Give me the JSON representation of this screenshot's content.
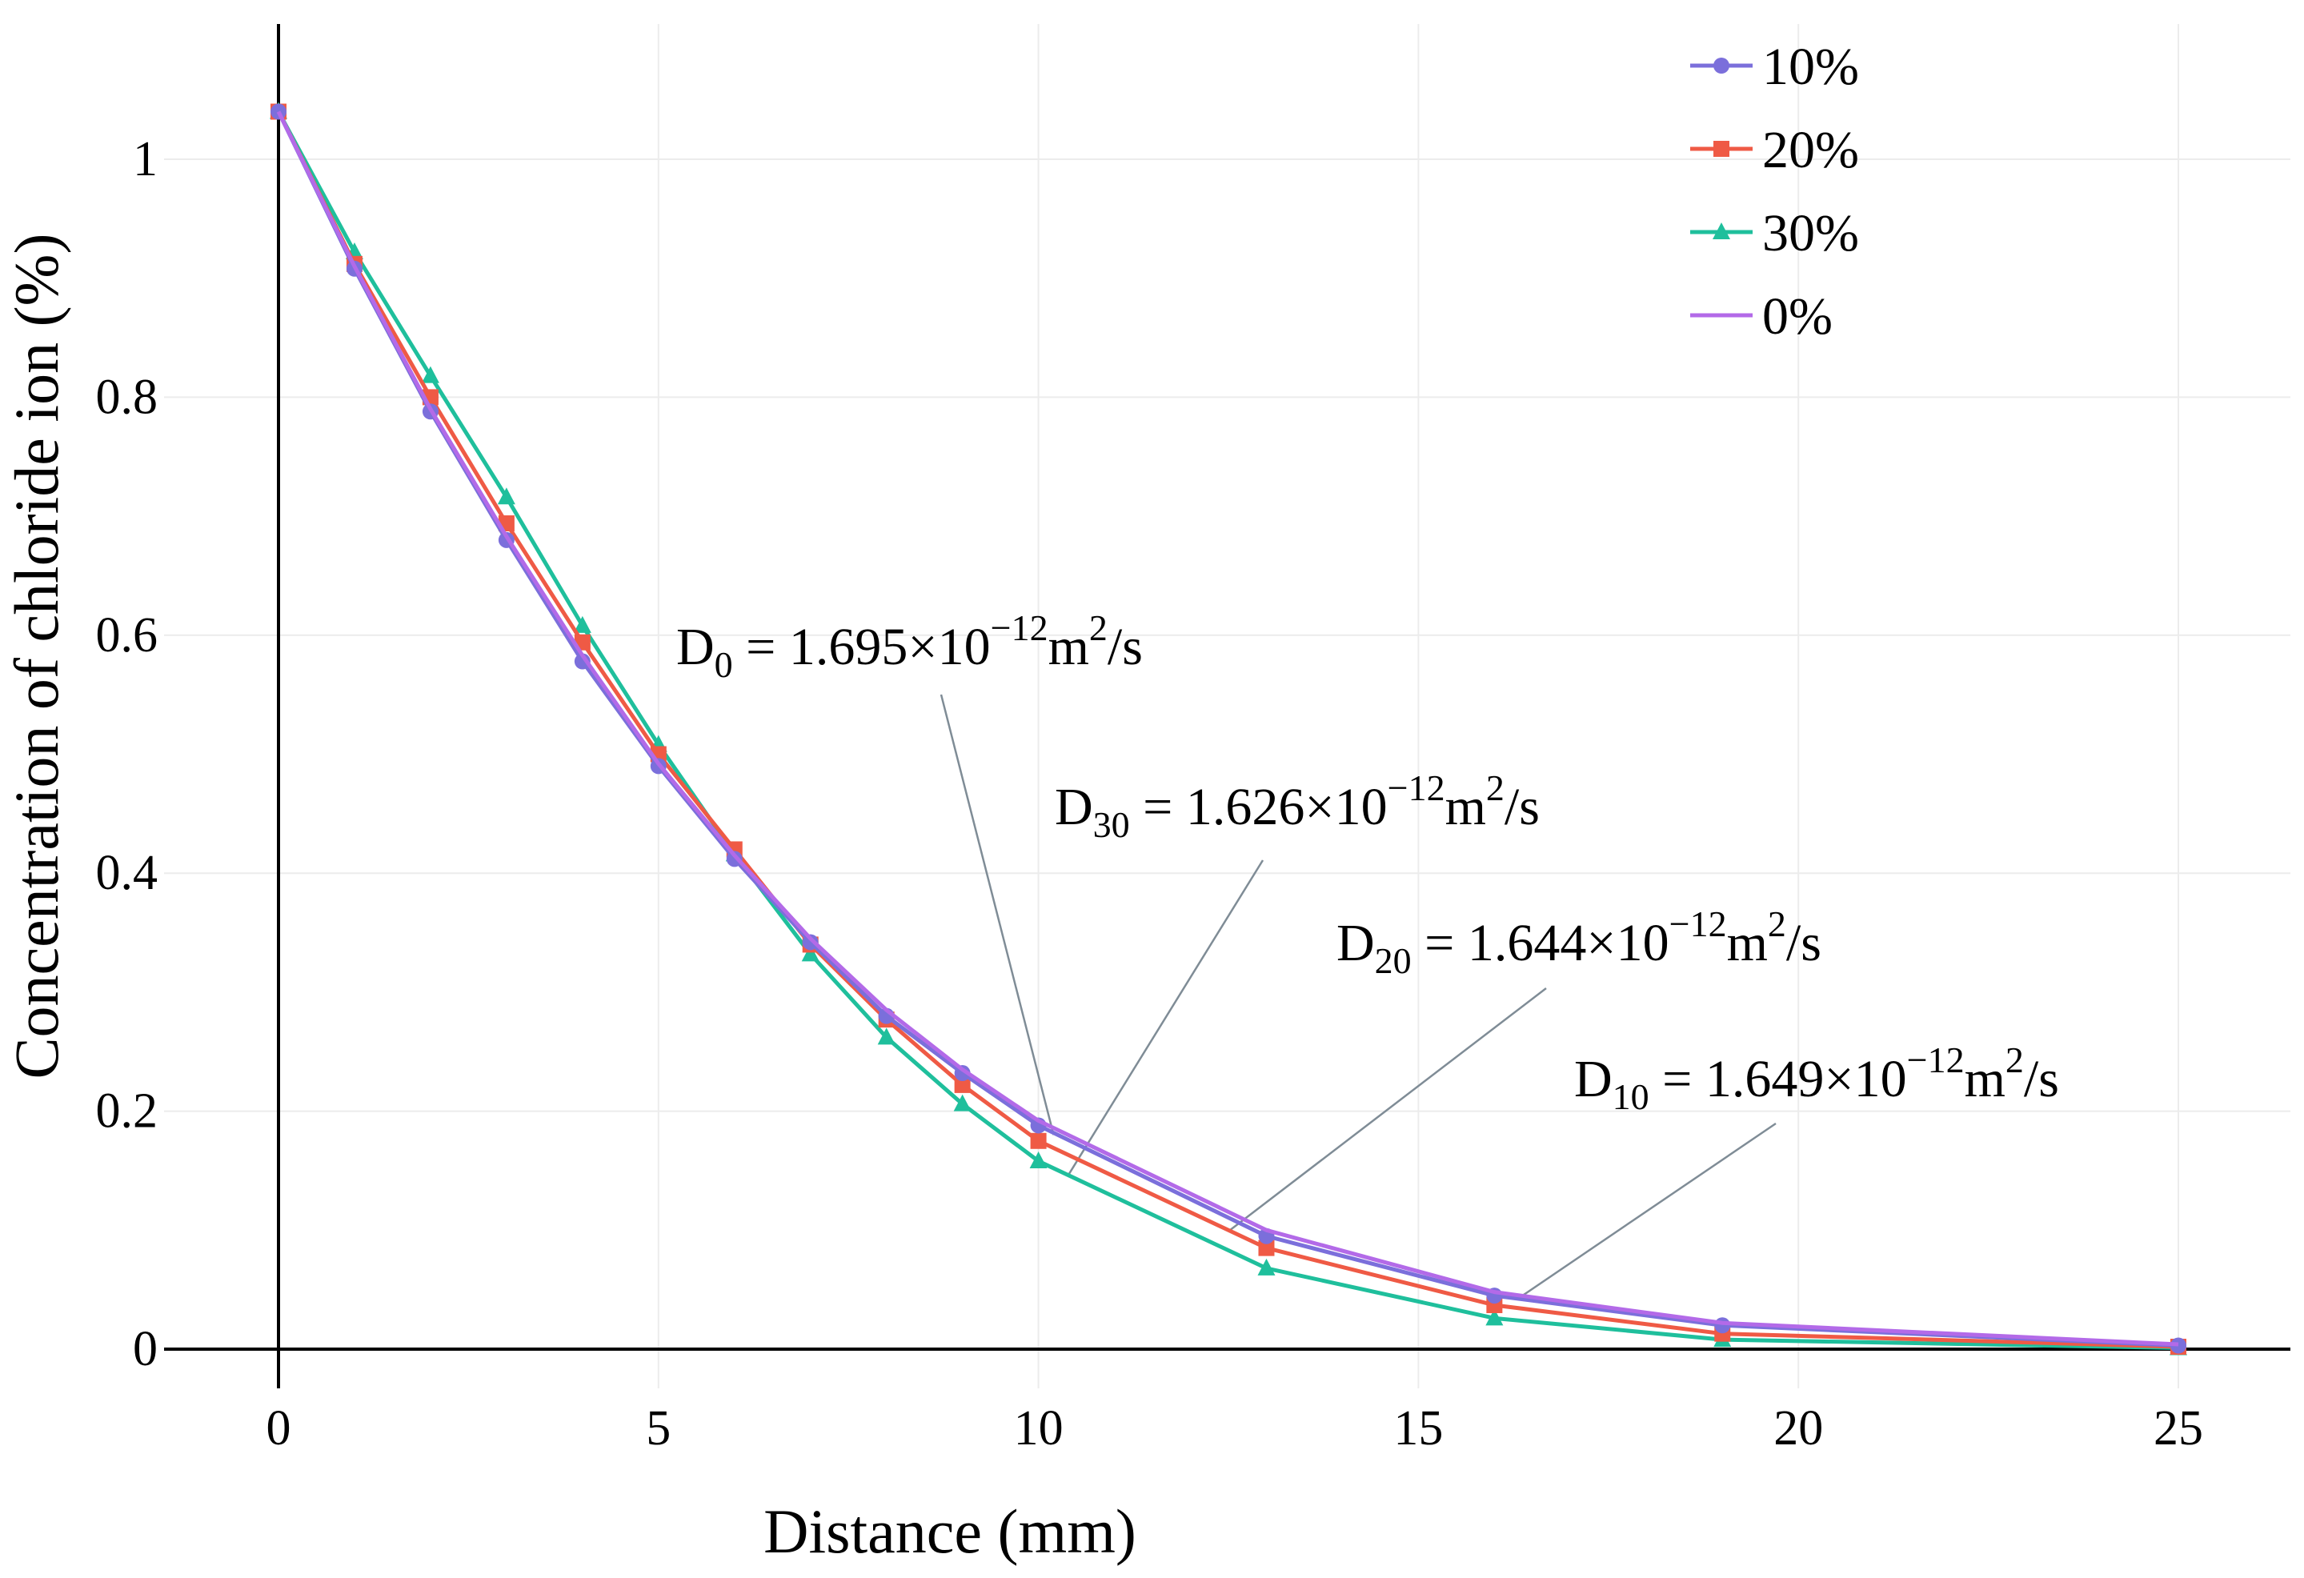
{
  "chart_data": {
    "type": "line",
    "title": "",
    "xlabel": "Distance (mm)",
    "ylabel": "Concentration of chloride ion (%)",
    "xlim": [
      -1.5,
      26.5
    ],
    "ylim": [
      -0.07,
      1.1
    ],
    "xticks": [
      0,
      5,
      10,
      15,
      20,
      25
    ],
    "xtick_labels": [
      "0",
      "5",
      "10",
      "15",
      "20",
      "25"
    ],
    "yticks": [
      0,
      0.2,
      0.4,
      0.6,
      0.8,
      1
    ],
    "ytick_labels": [
      "0",
      "0.2",
      "0.4",
      "0.6",
      "0.8",
      "1"
    ],
    "grid": true,
    "legend_position": "top-right",
    "x": [
      0,
      1,
      2,
      3,
      4,
      5,
      6,
      7,
      8,
      9,
      10,
      13,
      16,
      19,
      25
    ],
    "series": [
      {
        "name": "10%",
        "color": "#7b6fdb",
        "marker": "circle",
        "values": [
          1.04,
          0.908,
          0.788,
          0.68,
          0.578,
          0.49,
          0.412,
          0.342,
          0.28,
          0.232,
          0.188,
          0.095,
          0.045,
          0.02,
          0.003
        ]
      },
      {
        "name": "20%",
        "color": "#ef5a45",
        "marker": "square",
        "values": [
          1.04,
          0.912,
          0.8,
          0.694,
          0.594,
          0.5,
          0.42,
          0.34,
          0.277,
          0.222,
          0.175,
          0.085,
          0.037,
          0.013,
          0.002
        ]
      },
      {
        "name": "30%",
        "color": "#1fbf9c",
        "marker": "triangle",
        "values": [
          1.04,
          0.922,
          0.818,
          0.716,
          0.608,
          0.508,
          0.416,
          0.332,
          0.262,
          0.206,
          0.158,
          0.068,
          0.026,
          0.008,
          0.001
        ]
      },
      {
        "name": "0%",
        "color": "#b36ae8",
        "marker": "none",
        "values": [
          1.04,
          0.91,
          0.79,
          0.683,
          0.583,
          0.492,
          0.415,
          0.345,
          0.285,
          0.235,
          0.192,
          0.1,
          0.048,
          0.022,
          0.004
        ]
      }
    ],
    "annotations": [
      {
        "base": "D",
        "sub": "0",
        "middle": " = 1.695×10",
        "sup1": "−12",
        "unit": "m",
        "sup2": "2",
        "tail": "/s",
        "point": [
          10.2,
          0.18
        ]
      },
      {
        "base": "D",
        "sub": "30",
        "middle": " = 1.626×10",
        "sup1": "−12",
        "unit": "m",
        "sup2": "2",
        "tail": "/s",
        "point": [
          10.4,
          0.147
        ]
      },
      {
        "base": "D",
        "sub": "20",
        "middle": " = 1.644×10",
        "sup1": "−12",
        "unit": "m",
        "sup2": "2",
        "tail": "/s",
        "point": [
          12.5,
          0.099
        ]
      },
      {
        "base": "D",
        "sub": "10",
        "middle": " = 1.649×10",
        "sup1": "−12",
        "unit": "m",
        "sup2": "2",
        "tail": "/s",
        "point": [
          16.3,
          0.042
        ]
      }
    ]
  }
}
